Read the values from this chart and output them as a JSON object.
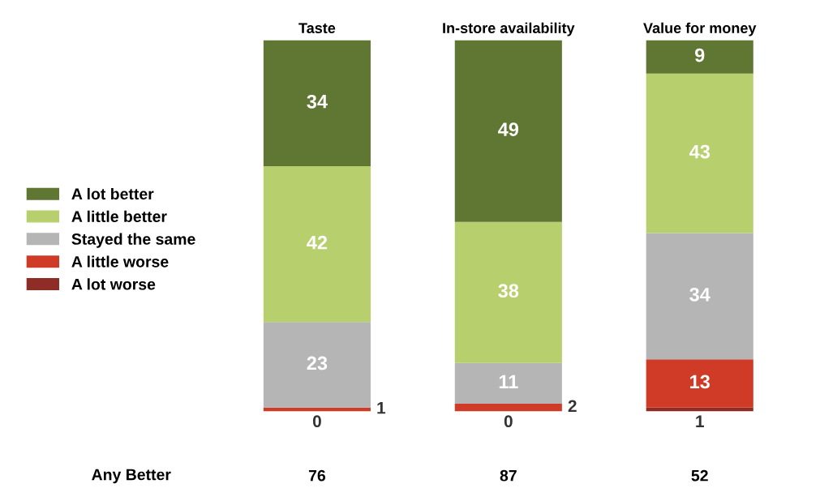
{
  "chart_data": {
    "type": "bar",
    "stacked": true,
    "data_labels": true,
    "legend": "left",
    "categories": [
      "Taste",
      "In-store availability",
      "Value for money"
    ],
    "series": [
      {
        "name": "A lot worse",
        "color": "#8e2c26",
        "values": [
          0,
          0,
          1
        ]
      },
      {
        "name": "A little worse",
        "color": "#cf3b26",
        "values": [
          1,
          2,
          13
        ]
      },
      {
        "name": "Stayed the same",
        "color": "#b5b5b5",
        "values": [
          23,
          11,
          34
        ]
      },
      {
        "name": "A little better",
        "color": "#b8cf6e",
        "values": [
          42,
          38,
          43
        ]
      },
      {
        "name": "A lot better",
        "color": "#5f7732",
        "values": [
          34,
          49,
          9
        ]
      }
    ],
    "annotations": [
      "Any Better",
      "76",
      "87",
      "52"
    ]
  }
}
